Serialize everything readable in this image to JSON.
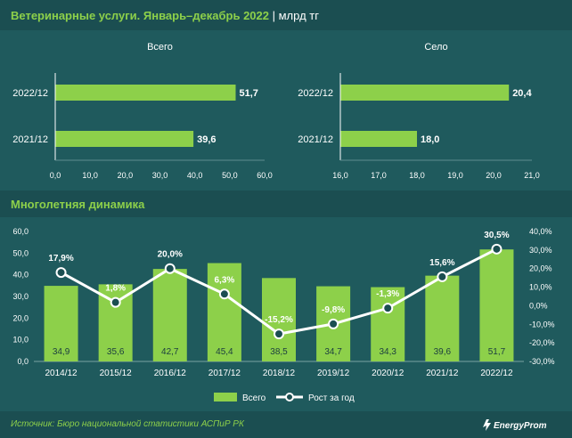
{
  "header": {
    "title": "Ветеринарные услуги. Январь–декабрь 2022",
    "separator": " | ",
    "unit": "млрд тг"
  },
  "section2": {
    "title": "Многолетняя динамика"
  },
  "footer": {
    "source": "Источник: Бюро национальной статистики АСПиР РК",
    "logo_text": "EnergyProm"
  },
  "colors": {
    "accent": "#8dd04a",
    "background": "#1f5a5d",
    "header_bg": "#1b4e51",
    "text": "#ffffff"
  },
  "chart_data": [
    {
      "type": "bar",
      "orientation": "horizontal",
      "title": "Всего",
      "categories": [
        "2022/12",
        "2021/12"
      ],
      "values": [
        51.7,
        39.6
      ],
      "value_labels": [
        "51,7",
        "39,6"
      ],
      "xlim": [
        0,
        60
      ],
      "ticks": [
        "0,0",
        "10,0",
        "20,0",
        "30,0",
        "40,0",
        "50,0",
        "60,0"
      ]
    },
    {
      "type": "bar",
      "orientation": "horizontal",
      "title": "Село",
      "categories": [
        "2022/12",
        "2021/12"
      ],
      "values": [
        20.4,
        18.0
      ],
      "value_labels": [
        "20,4",
        "18,0"
      ],
      "xlim": [
        16,
        21
      ],
      "ticks": [
        "16,0",
        "17,0",
        "18,0",
        "19,0",
        "20,0",
        "21,0"
      ]
    },
    {
      "type": "bar",
      "categories": [
        "2014/12",
        "2015/12",
        "2016/12",
        "2017/12",
        "2018/12",
        "2019/12",
        "2020/12",
        "2021/12",
        "2022/12"
      ],
      "series": [
        {
          "name": "Всего",
          "type": "bar",
          "axis": "left",
          "values": [
            34.9,
            35.6,
            42.7,
            45.4,
            38.5,
            34.7,
            34.3,
            39.6,
            51.7
          ],
          "labels": [
            "34,9",
            "35,6",
            "42,7",
            "45,4",
            "38,5",
            "34,7",
            "34,3",
            "39,6",
            "51,7"
          ]
        },
        {
          "name": "Рост за год",
          "type": "line",
          "axis": "right",
          "values": [
            17.9,
            1.8,
            20.0,
            6.3,
            -15.2,
            -9.8,
            -1.3,
            15.6,
            30.5
          ],
          "labels": [
            "17,9%",
            "1,8%",
            "20,0%",
            "6,3%",
            "-15,2%",
            "-9,8%",
            "-1,3%",
            "15,6%",
            "30,5%"
          ]
        }
      ],
      "ylim": [
        0,
        60
      ],
      "y_ticks": [
        "0,0",
        "10,0",
        "20,0",
        "30,0",
        "40,0",
        "50,0",
        "60,0"
      ],
      "y2lim": [
        -30,
        40
      ],
      "y2_ticks": [
        "-30,0%",
        "-20,0%",
        "-10,0%",
        "0,0%",
        "10,0%",
        "20,0%",
        "30,0%",
        "40,0%"
      ],
      "legend": "bottom"
    }
  ]
}
